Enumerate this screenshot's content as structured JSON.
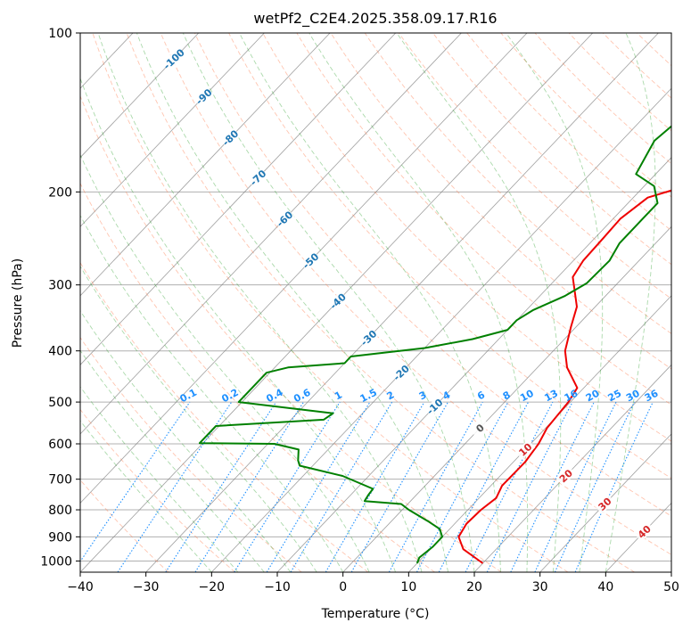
{
  "colors": {
    "temperature": "#ee0000",
    "dewpoint": "#008000",
    "isotherm": "#808080",
    "dry_adiabat": "#ff7f50",
    "moist_adiabat": "#2ca02c",
    "mixing_ratio": "#1e90ff",
    "isotherm_label": "#1f77b4",
    "positive_label": "#d62728",
    "zero_label": "#555555",
    "grid": "#b0b0b0"
  },
  "chart_data": {
    "type": "line",
    "title": "wetPf2_C2E4.2025.358.09.17.R16",
    "xlabel": "Temperature (°C)",
    "ylabel": "Pressure (hPa)",
    "xlim": [
      -40,
      50
    ],
    "ylim": [
      1050,
      100
    ],
    "y_scale": "log",
    "grid": true,
    "x_ticks": [
      -40,
      -30,
      -20,
      -10,
      0,
      10,
      20,
      30,
      40,
      50
    ],
    "y_ticks": [
      100,
      200,
      300,
      400,
      500,
      600,
      700,
      800,
      900,
      1000
    ],
    "series": [
      {
        "key": "temperature",
        "points": [
          [
            20.0,
            1010
          ],
          [
            15.0,
            950
          ],
          [
            12.5,
            900
          ],
          [
            11.8,
            850
          ],
          [
            12.0,
            800
          ],
          [
            12.6,
            760
          ],
          [
            11.7,
            720
          ],
          [
            11.8,
            650
          ],
          [
            11.2,
            600
          ],
          [
            10.2,
            560
          ],
          [
            9.7,
            500
          ],
          [
            9.0,
            470
          ],
          [
            4.5,
            430
          ],
          [
            1.8,
            400
          ],
          [
            -0.8,
            360
          ],
          [
            -2.8,
            330
          ],
          [
            -7.7,
            290
          ],
          [
            -8.5,
            270
          ],
          [
            -8.7,
            245
          ],
          [
            -8.9,
            225
          ],
          [
            -7.8,
            205
          ],
          [
            -1.5,
            190
          ],
          [
            4.5,
            172
          ],
          [
            6.5,
            158
          ],
          [
            8.0,
            148
          ],
          [
            8.2,
            140
          ],
          [
            8.2,
            128
          ],
          [
            9.0,
            118
          ],
          [
            10.5,
            108
          ],
          [
            12.5,
            100
          ]
        ]
      },
      {
        "key": "dewpoint",
        "points": [
          [
            10.0,
            1010
          ],
          [
            9.5,
            985
          ],
          [
            10.0,
            940
          ],
          [
            10.0,
            900
          ],
          [
            8.5,
            870
          ],
          [
            5.5,
            840
          ],
          [
            1.0,
            800
          ],
          [
            -1.0,
            780
          ],
          [
            -7.0,
            770
          ],
          [
            -7.3,
            750
          ],
          [
            -7.5,
            730
          ],
          [
            -14.0,
            690
          ],
          [
            -22.0,
            660
          ],
          [
            -23.0,
            645
          ],
          [
            -24.5,
            615
          ],
          [
            -29.0,
            600
          ],
          [
            -40.5,
            598
          ],
          [
            -40.5,
            555
          ],
          [
            -25.0,
            540
          ],
          [
            -24.5,
            525
          ],
          [
            -40.5,
            500
          ],
          [
            -40.5,
            440
          ],
          [
            -38.0,
            430
          ],
          [
            -30.0,
            422
          ],
          [
            -30.0,
            410
          ],
          [
            -20.0,
            395
          ],
          [
            -14.0,
            380
          ],
          [
            -10.0,
            365
          ],
          [
            -10.0,
            350
          ],
          [
            -9.0,
            335
          ],
          [
            -6.2,
            315
          ],
          [
            -4.7,
            298
          ],
          [
            -4.5,
            270
          ],
          [
            -5.5,
            250
          ],
          [
            -5.5,
            225
          ],
          [
            -5.5,
            210
          ],
          [
            -8.5,
            195
          ],
          [
            -13.0,
            185
          ],
          [
            -14.0,
            172
          ],
          [
            -15.0,
            160
          ],
          [
            -14.5,
            150
          ],
          [
            -10.5,
            138
          ],
          [
            -5.5,
            120
          ],
          [
            -1.0,
            110
          ],
          [
            2.0,
            100
          ]
        ]
      }
    ],
    "isotherm_labels": [
      "-100",
      "-90",
      "-80",
      "-70",
      "-60",
      "-50",
      "-40",
      "-30",
      "-20",
      "-10",
      "0",
      "10",
      "20",
      "30",
      "40"
    ],
    "mixing_ratio_labels": [
      "0.1",
      "0.2",
      "0.4",
      "0.6",
      "1",
      "1.5",
      "2",
      "3",
      "4",
      "6",
      "8",
      "10",
      "13",
      "16",
      "20",
      "25",
      "30",
      "36"
    ]
  }
}
